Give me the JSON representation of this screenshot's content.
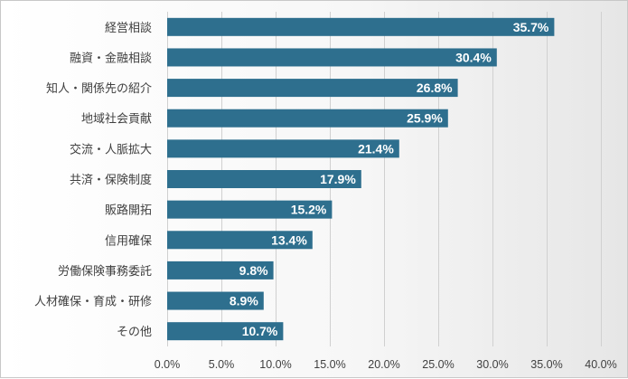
{
  "chart_data": {
    "type": "bar",
    "orientation": "horizontal",
    "categories": [
      "経営相談",
      "融資・金融相談",
      "知人・関係先の紹介",
      "地域社会貢献",
      "交流・人脈拡大",
      "共済・保険制度",
      "販路開拓",
      "信用確保",
      "労働保険事務委託",
      "人材確保・育成・研修",
      "その他"
    ],
    "values": [
      35.7,
      30.4,
      26.8,
      25.9,
      21.4,
      17.9,
      15.2,
      13.4,
      9.8,
      8.9,
      10.7
    ],
    "data_labels": [
      "35.7%",
      "30.4%",
      "26.8%",
      "25.9%",
      "21.4%",
      "17.9%",
      "15.2%",
      "13.4%",
      "9.8%",
      "8.9%",
      "10.7%"
    ],
    "xlim": [
      0,
      40
    ],
    "x_ticks": [
      0,
      5,
      10,
      15,
      20,
      25,
      30,
      35,
      40
    ],
    "x_tick_labels": [
      "0.0%",
      "5.0%",
      "10.0%",
      "15.0%",
      "20.0%",
      "25.0%",
      "30.0%",
      "35.0%",
      "40.0%"
    ],
    "title": "",
    "xlabel": "",
    "ylabel": "",
    "grid": "vertical",
    "legend": "none",
    "colors": {
      "bar": "#2e6f8e",
      "grid": "#d0d0d0",
      "text": "#404040",
      "data_label": "#ffffff"
    }
  }
}
